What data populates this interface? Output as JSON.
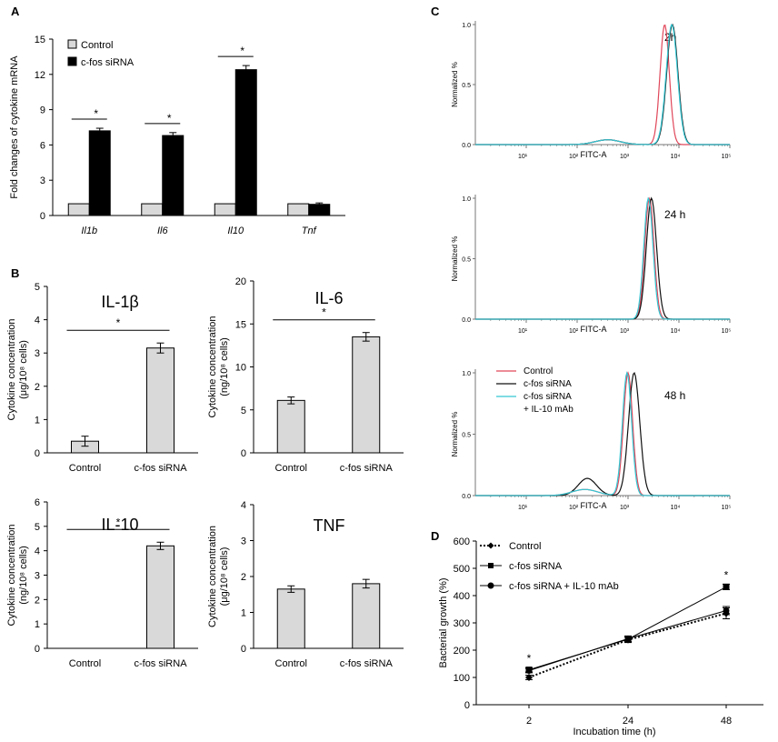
{
  "colors": {
    "axis": "#000000",
    "bar_light": "#d9d9d9",
    "bar_dark": "#000000",
    "flow_control": "#e0475a",
    "flow_sirna": "#111111",
    "flow_il10": "#33c8d4",
    "flow_grid": "#777777"
  },
  "panels": {
    "A": "A",
    "B": "B",
    "C": "C",
    "D": "D"
  },
  "chart_data": [
    {
      "id": "A",
      "type": "bar",
      "title": "",
      "ylabel": "Fold changes of cytokine mRNA",
      "categories": [
        "Il1b",
        "Il6",
        "Il10",
        "Tnf"
      ],
      "ylim": [
        0,
        15
      ],
      "yticks": [
        0,
        3,
        6,
        9,
        12,
        15
      ],
      "series": [
        {
          "name": "Control",
          "values": [
            1,
            1,
            1,
            1
          ],
          "err": [
            0,
            0,
            0,
            0
          ]
        },
        {
          "name": "c-fos siRNA",
          "values": [
            7.2,
            6.8,
            12.4,
            0.95
          ],
          "err": [
            0.22,
            0.25,
            0.35,
            0.12
          ]
        }
      ],
      "significance": [
        "*",
        "*",
        "*",
        ""
      ]
    },
    {
      "id": "B1",
      "type": "bar",
      "title": "IL-1β",
      "ylabel_line1": "Cytokine concentration",
      "ylabel_line2": "(μg/10⁸ cells)",
      "categories": [
        "Control",
        "c-fos siRNA"
      ],
      "values": [
        0.35,
        3.15
      ],
      "err": [
        0.15,
        0.15
      ],
      "ylim": [
        0,
        5
      ],
      "yticks": [
        0,
        1,
        2,
        3,
        4,
        5
      ],
      "significance": "*"
    },
    {
      "id": "B2",
      "type": "bar",
      "title": "IL-6",
      "ylabel_line1": "Cytokine concentration",
      "ylabel_line2": "(ng/10⁸ cells)",
      "categories": [
        "Control",
        "c-fos siRNA"
      ],
      "values": [
        6.1,
        13.5
      ],
      "err": [
        0.4,
        0.5
      ],
      "ylim": [
        0,
        20
      ],
      "yticks": [
        0,
        5,
        10,
        15,
        20
      ],
      "significance": "*"
    },
    {
      "id": "B3",
      "type": "bar",
      "title": "IL-10",
      "ylabel_line1": "Cytokine concentration",
      "ylabel_line2": "(ng/10⁸ cells)",
      "categories": [
        "Control",
        "c-fos siRNA"
      ],
      "values": [
        0,
        4.2
      ],
      "err": [
        0,
        0.15
      ],
      "ylim": [
        0,
        6
      ],
      "yticks": [
        0,
        1,
        2,
        3,
        4,
        5,
        6
      ],
      "significance": "*"
    },
    {
      "id": "B4",
      "type": "bar",
      "title": "TNF",
      "ylabel_line1": "Cytokine concentration",
      "ylabel_line2": "(μg/10⁸ cells)",
      "categories": [
        "Control",
        "c-fos siRNA"
      ],
      "values": [
        1.65,
        1.8
      ],
      "err": [
        0.09,
        0.12
      ],
      "ylim": [
        0,
        4
      ],
      "yticks": [
        0,
        1,
        2,
        3,
        4
      ],
      "significance": ""
    },
    {
      "id": "C1",
      "type": "line",
      "title": "2h",
      "xlabel": "FITC-A",
      "ylabel": "Normalized %",
      "xscale": "log",
      "xlim": [
        1,
        100000
      ],
      "ylim": [
        0,
        1.0
      ],
      "xticks": [
        "10¹",
        "10²",
        "10³",
        "10⁴",
        "10⁵"
      ],
      "yticks": [
        "0.0",
        "0.5",
        "1.0"
      ],
      "series": [
        {
          "name": "Control",
          "peak_log": 3.72,
          "width": 0.09
        },
        {
          "name": "c-fos siRNA",
          "peak_log": 3.87,
          "width": 0.11
        },
        {
          "name": "c-fos siRNA + IL-10 mAb",
          "peak_log": 3.86,
          "width": 0.11
        }
      ]
    },
    {
      "id": "C2",
      "type": "line",
      "title": "24 h",
      "xlabel": "FITC-A",
      "ylabel": "Normalized %",
      "xscale": "log",
      "xlim": [
        1,
        100000
      ],
      "ylim": [
        0,
        1.0
      ],
      "xticks": [
        "10¹",
        "10²",
        "10³",
        "10⁴",
        "10⁵"
      ],
      "yticks": [
        "0.0",
        "0.5",
        "1.0"
      ],
      "series": [
        {
          "name": "Control",
          "peak_log": 3.42,
          "width": 0.09
        },
        {
          "name": "c-fos siRNA",
          "peak_log": 3.46,
          "width": 0.1
        },
        {
          "name": "c-fos siRNA + IL-10 mAb",
          "peak_log": 3.4,
          "width": 0.09
        }
      ]
    },
    {
      "id": "C3",
      "type": "line",
      "title": "48 h",
      "xlabel": "FITC-A",
      "ylabel": "Normalized %",
      "xscale": "log",
      "xlim": [
        1,
        100000
      ],
      "ylim": [
        0,
        1.0
      ],
      "xticks": [
        "10¹",
        "10²",
        "10³",
        "10⁴",
        "10⁵"
      ],
      "yticks": [
        "0.0",
        "0.5",
        "1.0"
      ],
      "legend": [
        "Control",
        "c-fos siRNA",
        "c-fos siRNA",
        "+ IL-10 mAb"
      ],
      "series": [
        {
          "name": "Control",
          "peak_log": 3.0,
          "width": 0.09
        },
        {
          "name": "c-fos siRNA",
          "peak_log": 3.12,
          "width": 0.11
        },
        {
          "name": "c-fos siRNA + IL-10 mAb",
          "peak_log": 2.98,
          "width": 0.09
        }
      ]
    },
    {
      "id": "D",
      "type": "line",
      "xlabel": "Incubation time (h)",
      "ylabel": "Bacterial growth (%)",
      "categories": [
        "2",
        "24",
        "48"
      ],
      "ylim": [
        0,
        600
      ],
      "yticks": [
        0,
        100,
        200,
        300,
        400,
        500,
        600
      ],
      "series": [
        {
          "name": "Control",
          "values": [
            100,
            238,
            335
          ],
          "err": [
            8,
            10,
            20
          ],
          "style": "dotted"
        },
        {
          "name": "c-fos siRNA",
          "values": [
            128,
            240,
            432
          ],
          "err": [
            8,
            10,
            10
          ],
          "style": "solid"
        },
        {
          "name": "c-fos siRNA + IL-10 mAb",
          "values": [
            125,
            242,
            345
          ],
          "err": [
            8,
            10,
            15
          ],
          "style": "solid"
        }
      ],
      "significance": [
        "*",
        "",
        "*"
      ]
    }
  ]
}
